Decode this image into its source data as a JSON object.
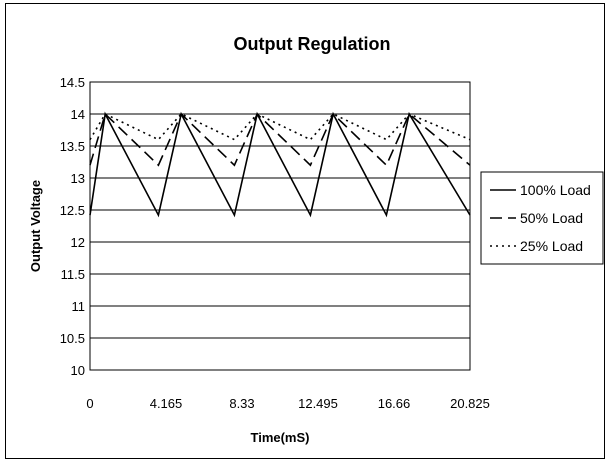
{
  "chart_data": {
    "type": "line",
    "title": "Output Regulation",
    "xlabel": "Time(mS)",
    "ylabel": "Output Voltage",
    "ylim": [
      10,
      14.5
    ],
    "yticks": [
      "14.5",
      "14",
      "13.5",
      "13",
      "12.5",
      "12",
      "11.5",
      "11",
      "10.5",
      "10"
    ],
    "xlim": [
      0,
      20.825
    ],
    "xticks": [
      "0",
      "4.165",
      "8.33",
      "12.495",
      "16.66",
      "20.825"
    ],
    "grid": "horizontal",
    "legend": "right",
    "series": [
      {
        "name": "100% Load",
        "style": "solid",
        "color": "#000000",
        "points": [
          [
            0,
            12.42
          ],
          [
            0.833,
            14.0
          ],
          [
            3.749,
            12.42
          ],
          [
            4.998,
            14.0
          ],
          [
            7.914,
            12.42
          ],
          [
            9.163,
            14.0
          ],
          [
            12.079,
            12.42
          ],
          [
            13.328,
            14.0
          ],
          [
            16.244,
            12.42
          ],
          [
            17.493,
            14.0
          ],
          [
            20.825,
            12.42
          ]
        ]
      },
      {
        "name": "50% Load",
        "style": "dashed",
        "color": "#000000",
        "points": [
          [
            0,
            13.2
          ],
          [
            0.833,
            14.0
          ],
          [
            3.749,
            13.2
          ],
          [
            4.998,
            14.0
          ],
          [
            7.914,
            13.2
          ],
          [
            9.163,
            14.0
          ],
          [
            12.079,
            13.2
          ],
          [
            13.328,
            14.0
          ],
          [
            16.244,
            13.2
          ],
          [
            17.493,
            14.0
          ],
          [
            20.825,
            13.2
          ]
        ]
      },
      {
        "name": "25% Load",
        "style": "dotted",
        "color": "#000000",
        "points": [
          [
            0,
            13.6
          ],
          [
            0.833,
            14.0
          ],
          [
            3.749,
            13.6
          ],
          [
            4.998,
            14.0
          ],
          [
            7.914,
            13.6
          ],
          [
            9.163,
            14.0
          ],
          [
            12.079,
            13.6
          ],
          [
            13.328,
            14.0
          ],
          [
            16.244,
            13.6
          ],
          [
            17.493,
            14.0
          ],
          [
            20.825,
            13.6
          ]
        ]
      }
    ]
  }
}
